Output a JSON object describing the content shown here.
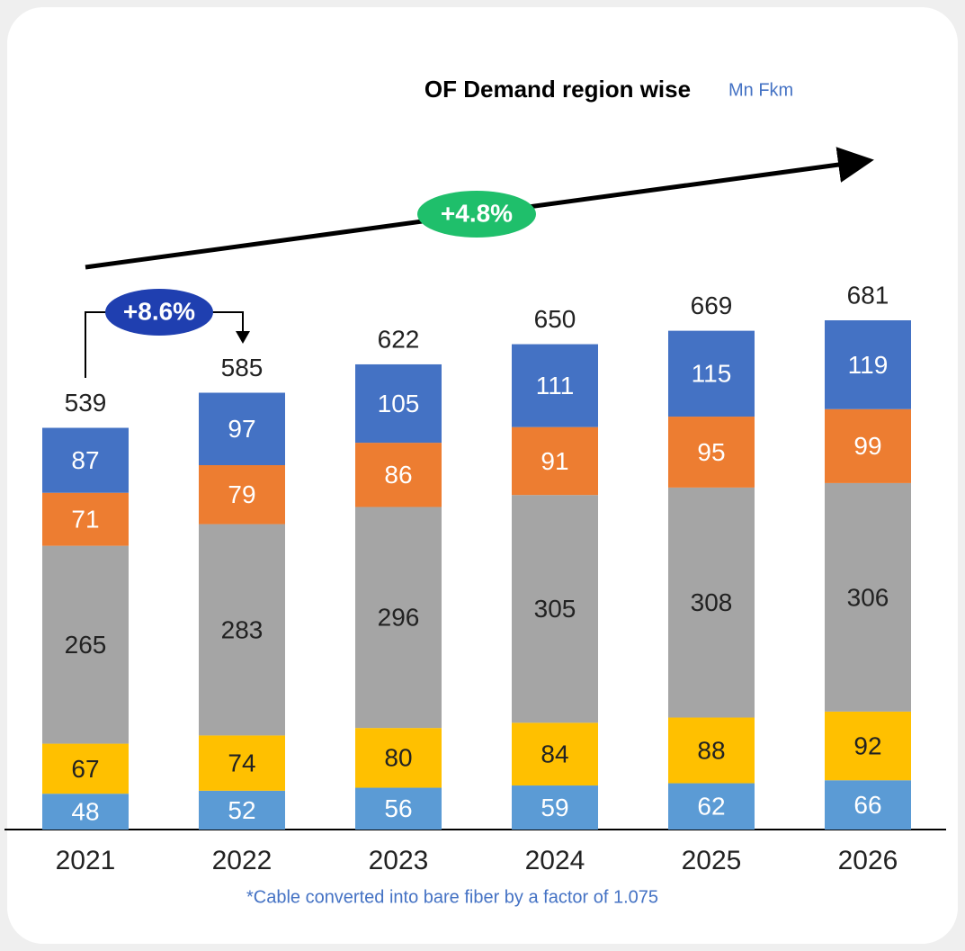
{
  "chart_data": {
    "type": "stacked_bar",
    "title": "OF Demand region wise",
    "unit": "Mn Fkm",
    "footnote": "*Cable converted into bare fiber by a factor of 1.075",
    "categories": [
      "2021",
      "2022",
      "2023",
      "2024",
      "2025",
      "2026"
    ],
    "series": [
      {
        "color": "#5b9bd5",
        "label_color": "#ffffff",
        "values": [
          48,
          52,
          56,
          59,
          62,
          66
        ]
      },
      {
        "color": "#ffc000",
        "label_color": "#222222",
        "values": [
          67,
          74,
          80,
          84,
          88,
          92
        ]
      },
      {
        "color": "#a5a5a5",
        "label_color": "#222222",
        "values": [
          265,
          283,
          296,
          305,
          308,
          306
        ]
      },
      {
        "color": "#ed7d31",
        "label_color": "#ffffff",
        "values": [
          71,
          79,
          86,
          91,
          95,
          99
        ]
      },
      {
        "color": "#4472c4",
        "label_color": "#ffffff",
        "values": [
          87,
          97,
          105,
          111,
          115,
          119
        ]
      }
    ],
    "totals": [
      539,
      585,
      622,
      650,
      669,
      681
    ],
    "annotations": [
      "+8.6%",
      "+4.8%"
    ]
  }
}
